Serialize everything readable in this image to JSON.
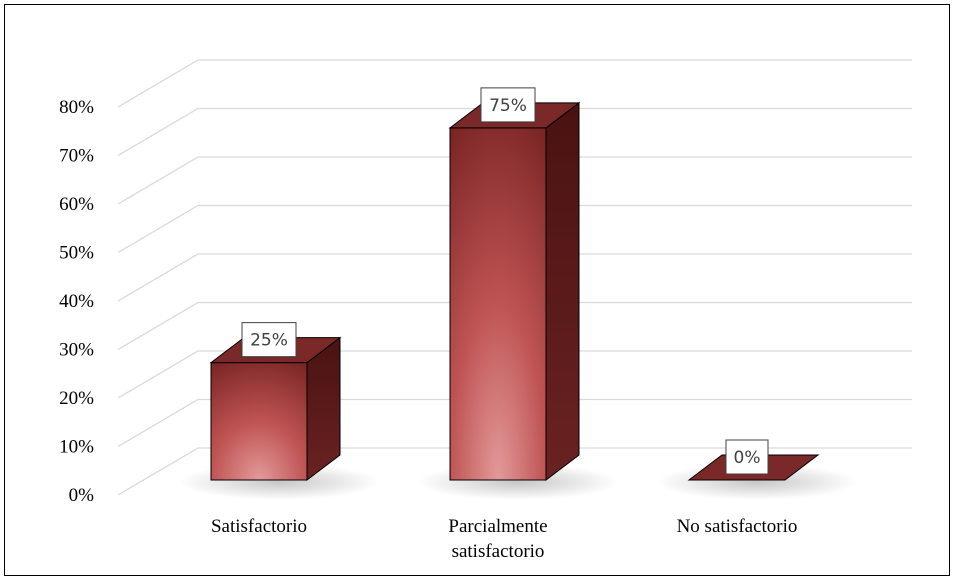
{
  "chart_data": {
    "type": "bar",
    "categories": [
      "Satisfactorio",
      "Parcialmente satisfactorio",
      "No satisfactorio"
    ],
    "category_lines": [
      [
        "Satisfactorio"
      ],
      [
        "Parcialmente",
        "satisfactorio"
      ],
      [
        "No satisfactorio"
      ]
    ],
    "values": [
      25,
      75,
      0
    ],
    "data_labels": [
      "25%",
      "75%",
      "0%"
    ],
    "ylim": [
      0,
      80
    ],
    "yticks": [
      0,
      10,
      20,
      30,
      40,
      50,
      60,
      70,
      80
    ],
    "ytick_labels": [
      "0%",
      "10%",
      "20%",
      "30%",
      "40%",
      "50%",
      "60%",
      "70%",
      "80%"
    ],
    "title": "",
    "xlabel": "",
    "ylabel": "",
    "grid": true,
    "three_d": true,
    "colors": {
      "bar_light": "#de8a8a",
      "bar_mid": "#b84a4a",
      "bar_dark": "#6e1e1e",
      "bar_top": "#7a2828",
      "bar_side": "#4c1414",
      "grid": "#d9d9d9"
    }
  }
}
